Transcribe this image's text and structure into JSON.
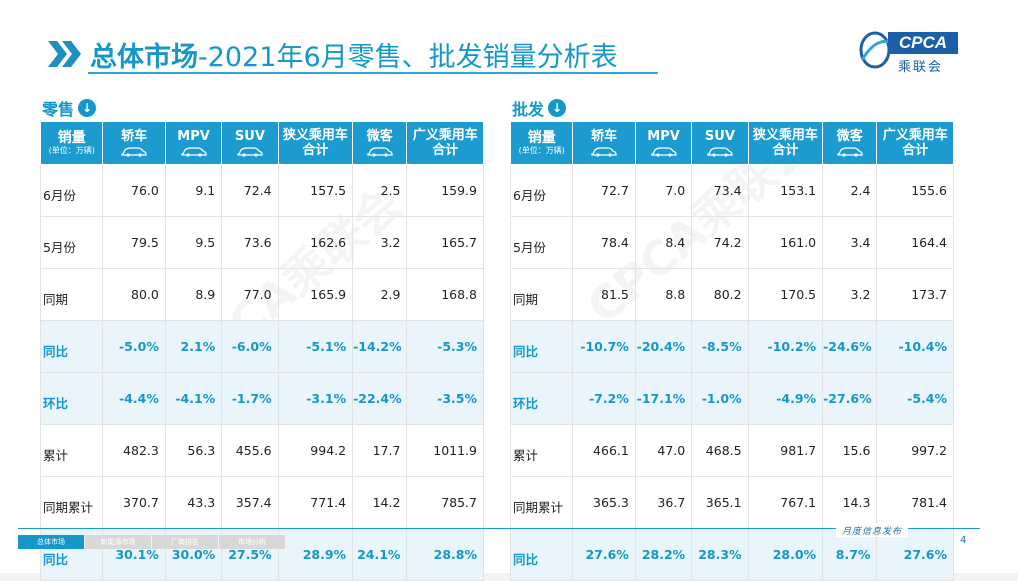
{
  "header": {
    "title_bold": "总体市场",
    "title_rest": "-2021年6月零售、批发销量分析表"
  },
  "logo": {
    "en": "CPCA",
    "cn": "乘联会"
  },
  "watermark": "CPCA乘联会",
  "columns": {
    "metric": "销量",
    "unit": "(单位：万辆)",
    "cols": [
      "轿车",
      "MPV",
      "SUV",
      "狭义乘用车合计",
      "微客",
      "广义乘用车合计"
    ]
  },
  "retail": {
    "label": "零售",
    "rows": [
      {
        "label": "6月份",
        "values": [
          "76.0",
          "9.1",
          "72.4",
          "157.5",
          "2.5",
          "159.9"
        ],
        "highlight": false
      },
      {
        "label": "5月份",
        "values": [
          "79.5",
          "9.5",
          "73.6",
          "162.6",
          "3.2",
          "165.7"
        ],
        "highlight": false
      },
      {
        "label": "同期",
        "values": [
          "80.0",
          "8.9",
          "77.0",
          "165.9",
          "2.9",
          "168.8"
        ],
        "highlight": false
      },
      {
        "label": "同比",
        "values": [
          "-5.0%",
          "2.1%",
          "-6.0%",
          "-5.1%",
          "-14.2%",
          "-5.3%"
        ],
        "highlight": true
      },
      {
        "label": "环比",
        "values": [
          "-4.4%",
          "-4.1%",
          "-1.7%",
          "-3.1%",
          "-22.4%",
          "-3.5%"
        ],
        "highlight": true
      },
      {
        "label": "累计",
        "values": [
          "482.3",
          "56.3",
          "455.6",
          "994.2",
          "17.7",
          "1011.9"
        ],
        "highlight": false
      },
      {
        "label": "同期累计",
        "values": [
          "370.7",
          "43.3",
          "357.4",
          "771.4",
          "14.2",
          "785.7"
        ],
        "highlight": false
      },
      {
        "label": "同比",
        "values": [
          "30.1%",
          "30.0%",
          "27.5%",
          "28.9%",
          "24.1%",
          "28.8%"
        ],
        "highlight": true
      }
    ]
  },
  "wholesale": {
    "label": "批发",
    "rows": [
      {
        "label": "6月份",
        "values": [
          "72.7",
          "7.0",
          "73.4",
          "153.1",
          "2.4",
          "155.6"
        ],
        "highlight": false
      },
      {
        "label": "5月份",
        "values": [
          "78.4",
          "8.4",
          "74.2",
          "161.0",
          "3.4",
          "164.4"
        ],
        "highlight": false
      },
      {
        "label": "同期",
        "values": [
          "81.5",
          "8.8",
          "80.2",
          "170.5",
          "3.2",
          "173.7"
        ],
        "highlight": false
      },
      {
        "label": "同比",
        "values": [
          "-10.7%",
          "-20.4%",
          "-8.5%",
          "-10.2%",
          "-24.6%",
          "-10.4%"
        ],
        "highlight": true
      },
      {
        "label": "环比",
        "values": [
          "-7.2%",
          "-17.1%",
          "-1.0%",
          "-4.9%",
          "-27.6%",
          "-5.4%"
        ],
        "highlight": true
      },
      {
        "label": "累计",
        "values": [
          "466.1",
          "47.0",
          "468.5",
          "981.7",
          "15.6",
          "997.2"
        ],
        "highlight": false
      },
      {
        "label": "同期累计",
        "values": [
          "365.3",
          "36.7",
          "365.1",
          "767.1",
          "14.3",
          "781.4"
        ],
        "highlight": false
      },
      {
        "label": "同比",
        "values": [
          "27.6%",
          "28.2%",
          "28.3%",
          "28.0%",
          "8.7%",
          "27.6%"
        ],
        "highlight": true
      }
    ]
  },
  "footer": {
    "tabs": [
      "总体市场",
      "新能源市场",
      "厂商排名",
      "市场分析"
    ],
    "active_tab": 0,
    "tagline": "月度信息发布",
    "page": "4"
  },
  "colors": {
    "accent": "#1597c9",
    "header_bg": "#1c9bd0",
    "highlight_row": "#eaf5fb",
    "logo_blue": "#1a5fa8"
  }
}
